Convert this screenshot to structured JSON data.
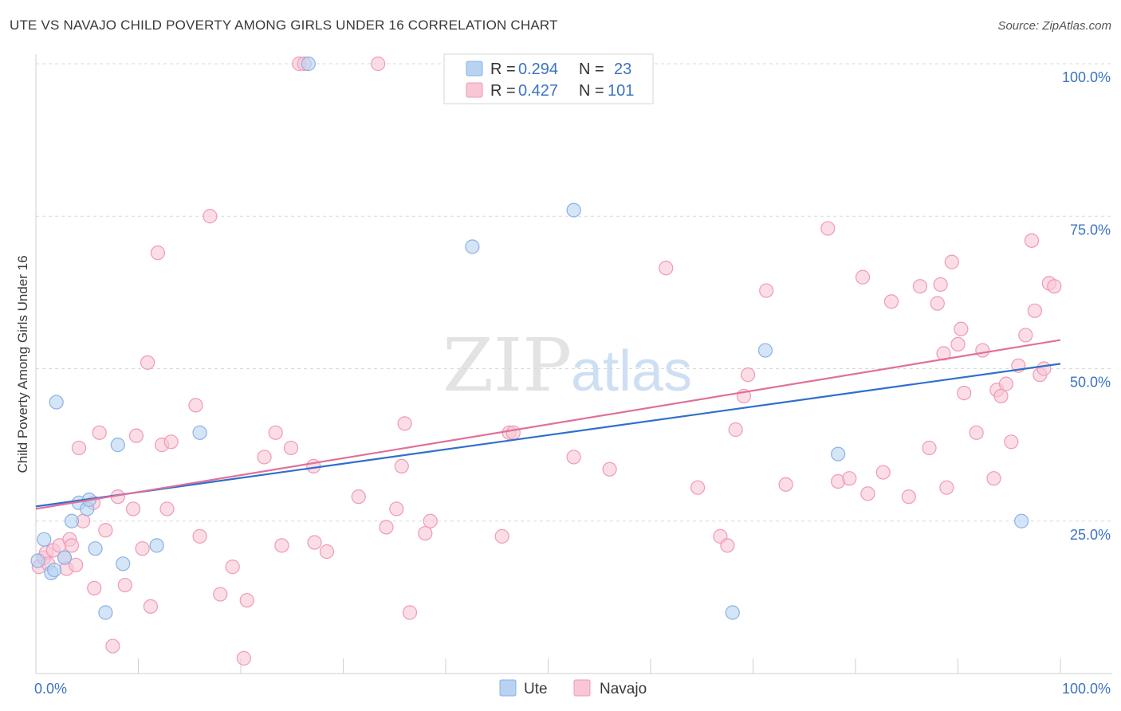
{
  "header": {
    "title": "UTE VS NAVAJO CHILD POVERTY AMONG GIRLS UNDER 16 CORRELATION CHART",
    "source": "Source: ZipAtlas.com"
  },
  "watermark": {
    "zip": "ZIP",
    "atlas": "atlas"
  },
  "legend": {
    "r_label": "R =",
    "n_label": "N =",
    "rows": [
      {
        "series": "Ute",
        "r": "0.294",
        "n": "23"
      },
      {
        "series": "Navajo",
        "r": "0.427",
        "n": "101"
      }
    ]
  },
  "colors": {
    "ute_fill": "#b8d3f2",
    "ute_stroke": "#8ab2e3",
    "ute_line": "#2f6fcc",
    "navajo_fill": "#f8c6d5",
    "navajo_stroke": "#f09ab5",
    "navajo_line": "#e0709a",
    "accent_text": "#3b73c4",
    "grid": "#d9d9d9"
  },
  "chart_data": {
    "type": "scatter",
    "title": "UTE VS NAVAJO CHILD POVERTY AMONG GIRLS UNDER 16 CORRELATION CHART",
    "xlabel": "",
    "ylabel": "Child Poverty Among Girls Under 16",
    "xlim": [
      0,
      100
    ],
    "ylim": [
      0,
      100
    ],
    "x_tick_labels": [
      "0.0%",
      "100.0%"
    ],
    "y_tick_labels": [
      "25.0%",
      "50.0%",
      "75.0%",
      "100.0%"
    ],
    "y_ticks": [
      25,
      50,
      75,
      100
    ],
    "grid": true,
    "legend_position": "top-center",
    "series": [
      {
        "name": "Ute",
        "r": 0.294,
        "n": 23,
        "trend": {
          "y_at_0": 27.4,
          "y_at_100": 50.8
        },
        "points": [
          [
            0.2,
            18.5
          ],
          [
            0.8,
            22
          ],
          [
            1.5,
            16.5
          ],
          [
            1.8,
            17
          ],
          [
            2.0,
            44.5
          ],
          [
            2.8,
            19
          ],
          [
            3.5,
            25
          ],
          [
            4.2,
            28
          ],
          [
            5.0,
            27
          ],
          [
            5.2,
            28.5
          ],
          [
            5.8,
            20.5
          ],
          [
            6.8,
            10
          ],
          [
            8.0,
            37.5
          ],
          [
            8.5,
            18
          ],
          [
            11.8,
            21
          ],
          [
            16.0,
            39.5
          ],
          [
            26.6,
            100
          ],
          [
            42.6,
            70
          ],
          [
            52.5,
            76
          ],
          [
            68.0,
            10
          ],
          [
            71.2,
            53
          ],
          [
            78.3,
            36
          ],
          [
            96.2,
            25
          ]
        ]
      },
      {
        "name": "Navajo",
        "r": 0.427,
        "n": 101,
        "trend": {
          "y_at_0": 27.0,
          "y_at_100": 54.7
        },
        "points": [
          [
            0.3,
            17.5
          ],
          [
            0.8,
            19
          ],
          [
            1.0,
            19.8
          ],
          [
            1.2,
            18
          ],
          [
            1.7,
            20.2
          ],
          [
            2.3,
            21
          ],
          [
            2.8,
            19
          ],
          [
            3.0,
            17.2
          ],
          [
            3.3,
            22
          ],
          [
            3.5,
            21
          ],
          [
            3.9,
            17.8
          ],
          [
            4.2,
            37
          ],
          [
            4.6,
            25
          ],
          [
            5.6,
            28
          ],
          [
            5.7,
            14
          ],
          [
            6.2,
            39.5
          ],
          [
            6.8,
            23.5
          ],
          [
            7.5,
            4.5
          ],
          [
            8.0,
            29
          ],
          [
            8.7,
            14.5
          ],
          [
            9.5,
            27
          ],
          [
            9.8,
            39
          ],
          [
            10.4,
            20.5
          ],
          [
            10.9,
            51
          ],
          [
            11.2,
            11
          ],
          [
            11.9,
            69
          ],
          [
            12.3,
            37.5
          ],
          [
            12.8,
            27
          ],
          [
            13.2,
            38
          ],
          [
            15.6,
            44
          ],
          [
            16.0,
            22.5
          ],
          [
            17.0,
            75
          ],
          [
            18.0,
            13
          ],
          [
            19.2,
            17.5
          ],
          [
            20.3,
            2.5
          ],
          [
            20.6,
            12
          ],
          [
            22.3,
            35.5
          ],
          [
            23.4,
            39.5
          ],
          [
            24.0,
            21
          ],
          [
            24.9,
            37
          ],
          [
            25.7,
            100
          ],
          [
            26.2,
            100
          ],
          [
            27.1,
            34
          ],
          [
            27.2,
            21.5
          ],
          [
            28.4,
            20
          ],
          [
            31.5,
            29
          ],
          [
            33.4,
            100
          ],
          [
            34.2,
            24
          ],
          [
            35.2,
            27
          ],
          [
            35.7,
            34
          ],
          [
            36.0,
            41
          ],
          [
            36.5,
            10
          ],
          [
            38.0,
            23
          ],
          [
            38.5,
            25
          ],
          [
            40.6,
            100
          ],
          [
            45.5,
            22.5
          ],
          [
            46.2,
            39.5
          ],
          [
            46.6,
            39.5
          ],
          [
            52.5,
            35.5
          ],
          [
            56.0,
            33.5
          ],
          [
            61.5,
            66.5
          ],
          [
            64.6,
            30.5
          ],
          [
            66.8,
            22.5
          ],
          [
            67.5,
            21
          ],
          [
            68.3,
            40
          ],
          [
            69.1,
            45.5
          ],
          [
            69.5,
            49
          ],
          [
            71.3,
            62.8
          ],
          [
            73.2,
            31
          ],
          [
            77.3,
            73
          ],
          [
            78.3,
            31.5
          ],
          [
            79.4,
            32
          ],
          [
            80.7,
            65
          ],
          [
            81.2,
            29.5
          ],
          [
            82.7,
            33
          ],
          [
            83.5,
            61
          ],
          [
            85.2,
            29
          ],
          [
            86.3,
            63.5
          ],
          [
            87.2,
            37
          ],
          [
            88.0,
            60.7
          ],
          [
            88.3,
            63.8
          ],
          [
            88.6,
            52.5
          ],
          [
            88.9,
            30.5
          ],
          [
            89.4,
            67.5
          ],
          [
            90.0,
            54
          ],
          [
            90.3,
            56.5
          ],
          [
            90.6,
            46
          ],
          [
            91.8,
            39.5
          ],
          [
            92.4,
            53
          ],
          [
            93.5,
            32
          ],
          [
            93.8,
            46.5
          ],
          [
            94.2,
            45.5
          ],
          [
            94.7,
            47.5
          ],
          [
            95.2,
            38
          ],
          [
            95.9,
            50.5
          ],
          [
            96.6,
            55.5
          ],
          [
            97.2,
            71
          ],
          [
            97.5,
            59.5
          ],
          [
            98.0,
            49
          ],
          [
            98.4,
            50
          ],
          [
            98.9,
            64
          ],
          [
            99.4,
            63.5
          ]
        ]
      }
    ]
  }
}
